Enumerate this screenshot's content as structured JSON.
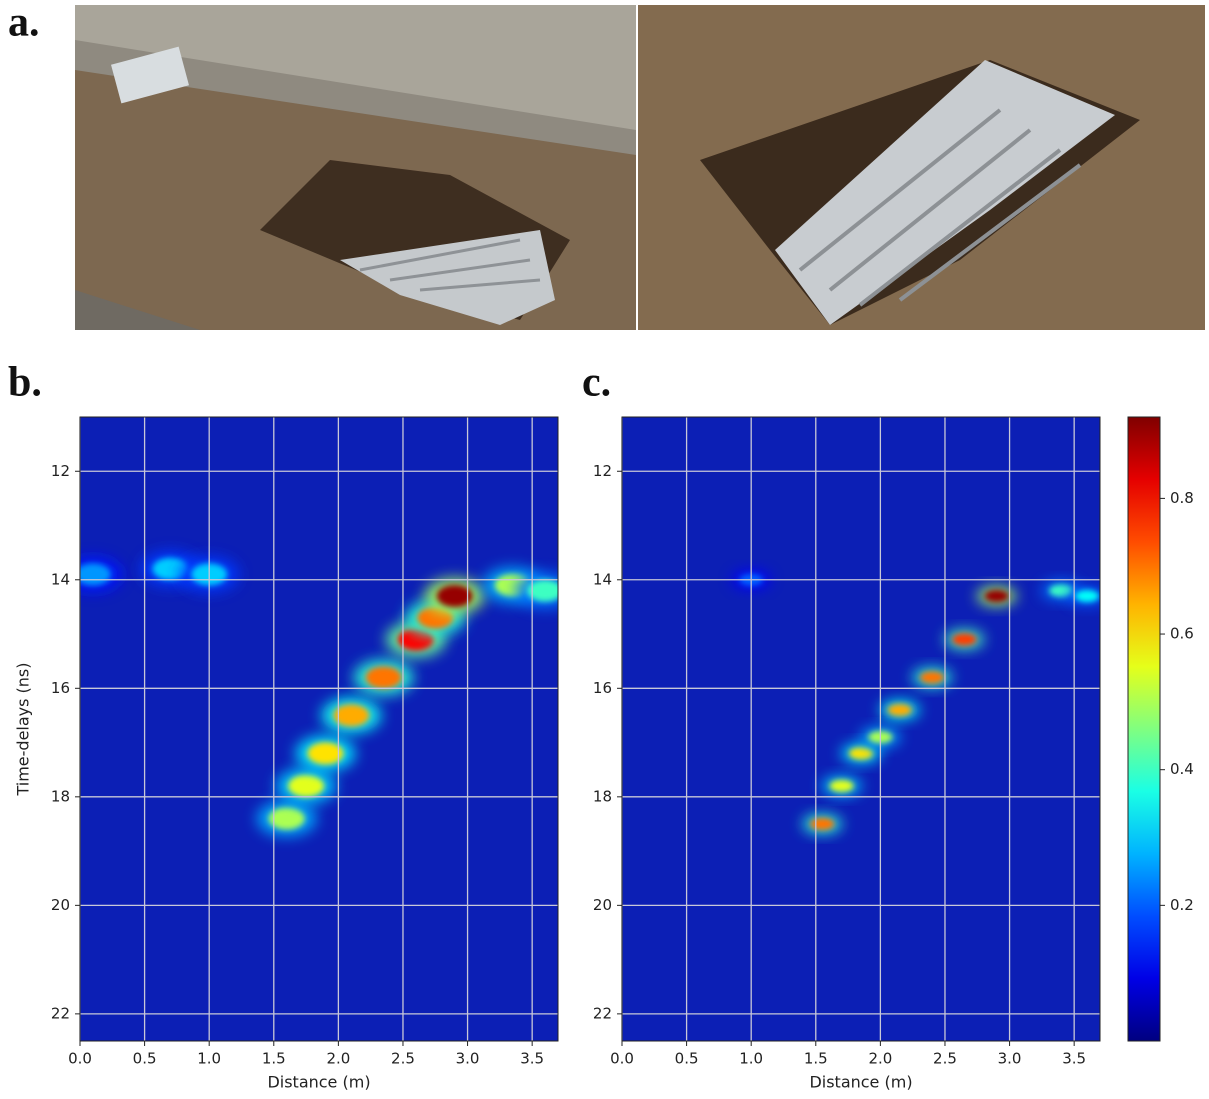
{
  "panels": {
    "a": "a.",
    "b": "b.",
    "c": "c."
  },
  "chart_data": [
    {
      "type": "heatmap",
      "xlabel": "Distance (m)",
      "ylabel": "Time-delays (ns)",
      "xlim": [
        0,
        3.7
      ],
      "ylim": [
        11.0,
        22.5
      ],
      "xticks": [
        {
          "value": 0,
          "label": "0.0"
        },
        0.5,
        {
          "value": 1,
          "label": "1.0"
        },
        1.5,
        {
          "value": 2,
          "label": "2.0"
        },
        2.5,
        {
          "value": 3,
          "label": "3.0"
        },
        3.5
      ],
      "yticks": [
        12,
        14,
        16,
        18,
        20,
        22
      ],
      "grid": true,
      "x": [
        0.1,
        0.7,
        1.0,
        1.6,
        1.75,
        1.9,
        2.1,
        2.35,
        2.6,
        2.75,
        2.9,
        3.35,
        3.6
      ],
      "y": [
        13.9,
        13.8,
        13.9,
        18.4,
        17.8,
        17.2,
        16.5,
        15.8,
        15.1,
        14.7,
        14.3,
        14.1,
        14.2
      ],
      "values": [
        0.25,
        0.3,
        0.3,
        0.5,
        0.55,
        0.6,
        0.65,
        0.7,
        0.8,
        0.7,
        0.9,
        0.5,
        0.4
      ]
    },
    {
      "type": "heatmap",
      "xlabel": "Distance (m)",
      "xlim": [
        0,
        3.7
      ],
      "ylim": [
        11.0,
        22.5
      ],
      "xticks": [
        {
          "value": 0,
          "label": "0.0"
        },
        0.5,
        {
          "value": 1,
          "label": "1.0"
        },
        1.5,
        {
          "value": 2,
          "label": "2.0"
        },
        2.5,
        {
          "value": 3,
          "label": "3.0"
        },
        3.5
      ],
      "yticks": [
        12,
        14,
        16,
        18,
        20,
        22
      ],
      "grid": true,
      "x": [
        1.0,
        1.55,
        1.7,
        1.85,
        2.0,
        2.15,
        2.4,
        2.65,
        2.9,
        3.4,
        3.6
      ],
      "y": [
        14.0,
        18.5,
        17.8,
        17.2,
        16.9,
        16.4,
        15.8,
        15.1,
        14.3,
        14.2,
        14.3
      ],
      "values": [
        0.2,
        0.7,
        0.55,
        0.6,
        0.5,
        0.65,
        0.7,
        0.75,
        0.9,
        0.4,
        0.35
      ],
      "clim": [
        0,
        0.92
      ],
      "cticks": [
        0.2,
        0.4,
        0.6,
        0.8
      ]
    }
  ]
}
